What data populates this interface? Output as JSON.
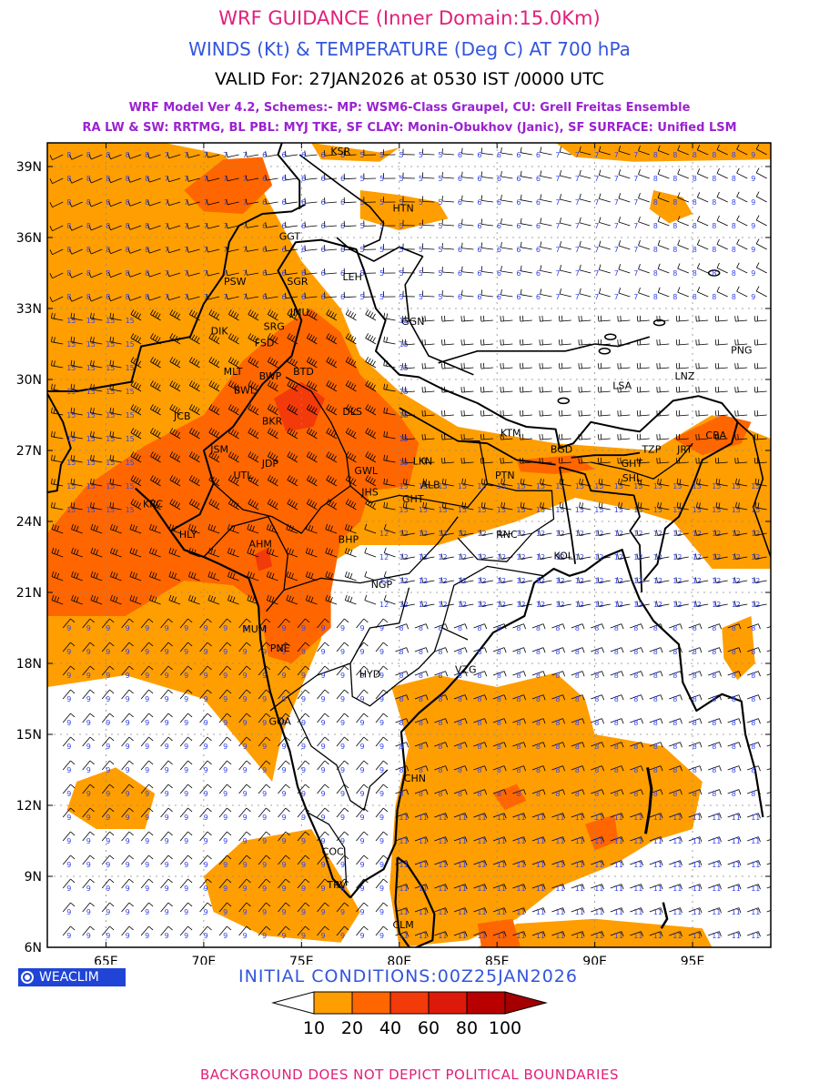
{
  "header": {
    "title": "WRF GUIDANCE (Inner Domain:15.0Km)",
    "subtitle": "WINDS (Kt) & TEMPERATURE (Deg C) AT 700 hPa",
    "valid": "VALID For: 27JAN2026 at 0530 IST /0000 UTC",
    "model_line1": "WRF Model Ver 4.2, Schemes:- MP: WSM6-Class Graupel, CU: Grell Freitas Ensemble",
    "model_line2": "RA LW & SW: RRTMG, BL PBL: MYJ TKE, SF CLAY: Monin-Obukhov (Janic), SF SURFACE: Unified LSM"
  },
  "map": {
    "lon_range": [
      62,
      99
    ],
    "lat_range": [
      6,
      40
    ],
    "lon_ticks": [
      "65E",
      "70E",
      "75E",
      "80E",
      "85E",
      "90E",
      "95E"
    ],
    "lat_ticks": [
      "39N",
      "36N",
      "33N",
      "30N",
      "27N",
      "24N",
      "21N",
      "18N",
      "15N",
      "12N",
      "9N",
      "6N"
    ],
    "colors": {
      "band_10_20": "#ff9e00",
      "band_20_40": "#ff6600",
      "band_40_60": "#f23a0a",
      "barb": "#000000",
      "speed_label": "#3344ee"
    },
    "stations": [
      {
        "name": "KSR",
        "lon": 77.0,
        "lat": 39.5
      },
      {
        "name": "HTN",
        "lon": 80.2,
        "lat": 37.1
      },
      {
        "name": "GGT",
        "lon": 74.4,
        "lat": 35.9
      },
      {
        "name": "LEH",
        "lon": 77.6,
        "lat": 34.2
      },
      {
        "name": "PSW",
        "lon": 71.6,
        "lat": 34.0
      },
      {
        "name": "SGR",
        "lon": 74.8,
        "lat": 34.0
      },
      {
        "name": "JMU",
        "lon": 74.9,
        "lat": 32.7
      },
      {
        "name": "GGN",
        "lon": 80.7,
        "lat": 32.3
      },
      {
        "name": "DIK",
        "lon": 70.8,
        "lat": 31.9
      },
      {
        "name": "SRG",
        "lon": 73.6,
        "lat": 32.1
      },
      {
        "name": "FSD",
        "lon": 73.1,
        "lat": 31.4
      },
      {
        "name": "PNG",
        "lon": 97.5,
        "lat": 31.1
      },
      {
        "name": "MLT",
        "lon": 71.5,
        "lat": 30.2
      },
      {
        "name": "BWP",
        "lon": 73.4,
        "lat": 30.0
      },
      {
        "name": "BTD",
        "lon": 75.1,
        "lat": 30.2
      },
      {
        "name": "LNZ",
        "lon": 94.6,
        "lat": 30.0
      },
      {
        "name": "LSA",
        "lon": 91.4,
        "lat": 29.6
      },
      {
        "name": "BWL",
        "lon": 72.1,
        "lat": 29.4
      },
      {
        "name": "DLS",
        "lon": 77.6,
        "lat": 28.5
      },
      {
        "name": "JCB",
        "lon": 68.9,
        "lat": 28.3
      },
      {
        "name": "BKR",
        "lon": 73.5,
        "lat": 28.1
      },
      {
        "name": "KTM",
        "lon": 85.7,
        "lat": 27.6
      },
      {
        "name": "CBA",
        "lon": 96.2,
        "lat": 27.5
      },
      {
        "name": "JSM",
        "lon": 70.8,
        "lat": 26.9
      },
      {
        "name": "BGD",
        "lon": 88.3,
        "lat": 26.9
      },
      {
        "name": "TZP",
        "lon": 92.9,
        "lat": 26.9
      },
      {
        "name": "JRT",
        "lon": 94.6,
        "lat": 26.9
      },
      {
        "name": "JDP",
        "lon": 73.4,
        "lat": 26.3
      },
      {
        "name": "LKN",
        "lon": 81.2,
        "lat": 26.4
      },
      {
        "name": "GHT",
        "lon": 91.9,
        "lat": 26.3
      },
      {
        "name": "GWL",
        "lon": 78.3,
        "lat": 26.0
      },
      {
        "name": "PTN",
        "lon": 85.4,
        "lat": 25.8
      },
      {
        "name": "SHL",
        "lon": 91.9,
        "lat": 25.7
      },
      {
        "name": "UTL",
        "lon": 72.0,
        "lat": 25.8
      },
      {
        "name": "ALB",
        "lon": 81.6,
        "lat": 25.4
      },
      {
        "name": "JHS",
        "lon": 78.5,
        "lat": 25.1
      },
      {
        "name": "GHT",
        "lon": 80.7,
        "lat": 24.8
      },
      {
        "name": "KRC",
        "lon": 67.4,
        "lat": 24.6
      },
      {
        "name": "RNC",
        "lon": 85.5,
        "lat": 23.3
      },
      {
        "name": "HLY",
        "lon": 69.2,
        "lat": 23.3
      },
      {
        "name": "BHP",
        "lon": 77.4,
        "lat": 23.1
      },
      {
        "name": "AHM",
        "lon": 72.9,
        "lat": 22.9
      },
      {
        "name": "KOL",
        "lon": 88.4,
        "lat": 22.4
      },
      {
        "name": "NGP",
        "lon": 79.1,
        "lat": 21.2
      },
      {
        "name": "MUM",
        "lon": 72.6,
        "lat": 19.3
      },
      {
        "name": "PNE",
        "lon": 73.9,
        "lat": 18.5
      },
      {
        "name": "VZG",
        "lon": 83.4,
        "lat": 17.6
      },
      {
        "name": "HYD",
        "lon": 78.5,
        "lat": 17.4
      },
      {
        "name": "GOA",
        "lon": 73.9,
        "lat": 15.4
      },
      {
        "name": "CHN",
        "lon": 80.8,
        "lat": 13.0
      },
      {
        "name": "COC",
        "lon": 76.6,
        "lat": 9.9
      },
      {
        "name": "TRV",
        "lon": 76.8,
        "lat": 8.5
      },
      {
        "name": "CLM",
        "lon": 80.2,
        "lat": 6.8
      }
    ]
  },
  "brand": {
    "label": "WEACLIM"
  },
  "initial": "INITIAL CONDITIONS:00Z25JAN2026",
  "legend": {
    "labels": [
      "10",
      "20",
      "40",
      "60",
      "80",
      "100"
    ]
  },
  "footer": "BACKGROUND DOES NOT DEPICT POLITICAL BOUNDARIES"
}
